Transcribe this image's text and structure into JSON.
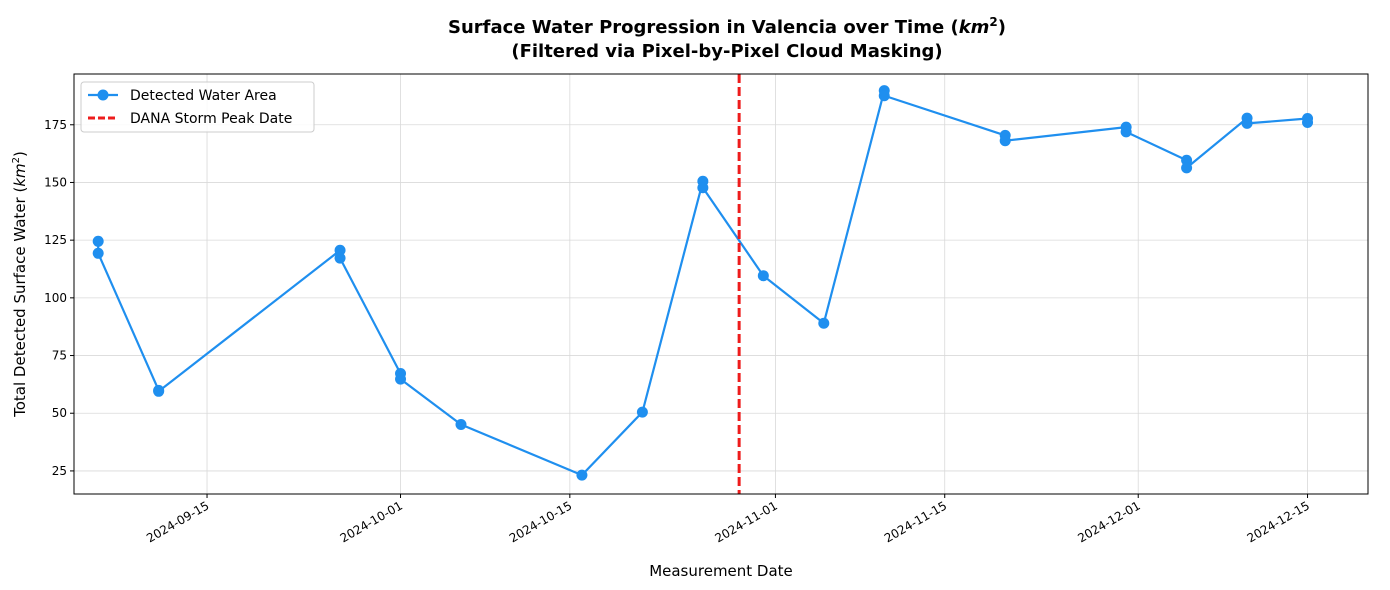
{
  "title_line1": "Surface Water Progression in Valencia over Time (",
  "title_unit": "km",
  "title_unit_exp": "2",
  "title_line1_end": ")",
  "title_line2": "(Filtered via Pixel-by-Pixel Cloud Masking)",
  "colors": {
    "series": "#1f8fef",
    "storm": "#ee1c1c",
    "grid": "#d9d9d9"
  },
  "chart_data": {
    "type": "line",
    "title": "Surface Water Progression in Valencia over Time (km²) (Filtered via Pixel-by-Pixel Cloud Masking)",
    "xlabel": "Measurement Date",
    "ylabel": "Total Detected Surface Water (km²)",
    "ylabel_text": "Total Detected Surface Water (",
    "ylabel_unit": "km",
    "ylabel_exp": "2",
    "ylabel_end": ")",
    "xlim": [
      "2024-09-04",
      "2024-12-20"
    ],
    "ylim": [
      15,
      197
    ],
    "yticks": [
      25,
      50,
      75,
      100,
      125,
      150,
      175
    ],
    "xticks": [
      "2024-09-15",
      "2024-10-01",
      "2024-10-15",
      "2024-11-01",
      "2024-11-15",
      "2024-12-01",
      "2024-12-15"
    ],
    "grid": true,
    "legend_position": "top-left",
    "series": [
      {
        "name": "Detected Water Area",
        "marker": "circle",
        "points": [
          {
            "x": "2024-09-06",
            "y": 124.5
          },
          {
            "x": "2024-09-06",
            "y": 119.3
          },
          {
            "x": "2024-09-11",
            "y": 59.9
          },
          {
            "x": "2024-09-11",
            "y": 59.5
          },
          {
            "x": "2024-09-26",
            "y": 120.6
          },
          {
            "x": "2024-09-26",
            "y": 117.2
          },
          {
            "x": "2024-10-01",
            "y": 67.2
          },
          {
            "x": "2024-10-01",
            "y": 64.8
          },
          {
            "x": "2024-10-06",
            "y": 45.1
          },
          {
            "x": "2024-10-16",
            "y": 23.2
          },
          {
            "x": "2024-10-21",
            "y": 50.5
          },
          {
            "x": "2024-10-26",
            "y": 150.5
          },
          {
            "x": "2024-10-26",
            "y": 147.7
          },
          {
            "x": "2024-10-31",
            "y": 109.6
          },
          {
            "x": "2024-11-05",
            "y": 89.0
          },
          {
            "x": "2024-11-10",
            "y": 189.8
          },
          {
            "x": "2024-11-10",
            "y": 187.6
          },
          {
            "x": "2024-11-20",
            "y": 170.4
          },
          {
            "x": "2024-11-20",
            "y": 168.1
          },
          {
            "x": "2024-11-30",
            "y": 174.0
          },
          {
            "x": "2024-11-30",
            "y": 171.9
          },
          {
            "x": "2024-12-05",
            "y": 159.6
          },
          {
            "x": "2024-12-05",
            "y": 156.3
          },
          {
            "x": "2024-12-10",
            "y": 177.9
          },
          {
            "x": "2024-12-10",
            "y": 175.6
          },
          {
            "x": "2024-12-15",
            "y": 177.7
          },
          {
            "x": "2024-12-15",
            "y": 176.0
          }
        ]
      },
      {
        "name": "DANA Storm Peak Date",
        "style": "dashed vertical line",
        "x": "2024-10-29"
      }
    ]
  }
}
